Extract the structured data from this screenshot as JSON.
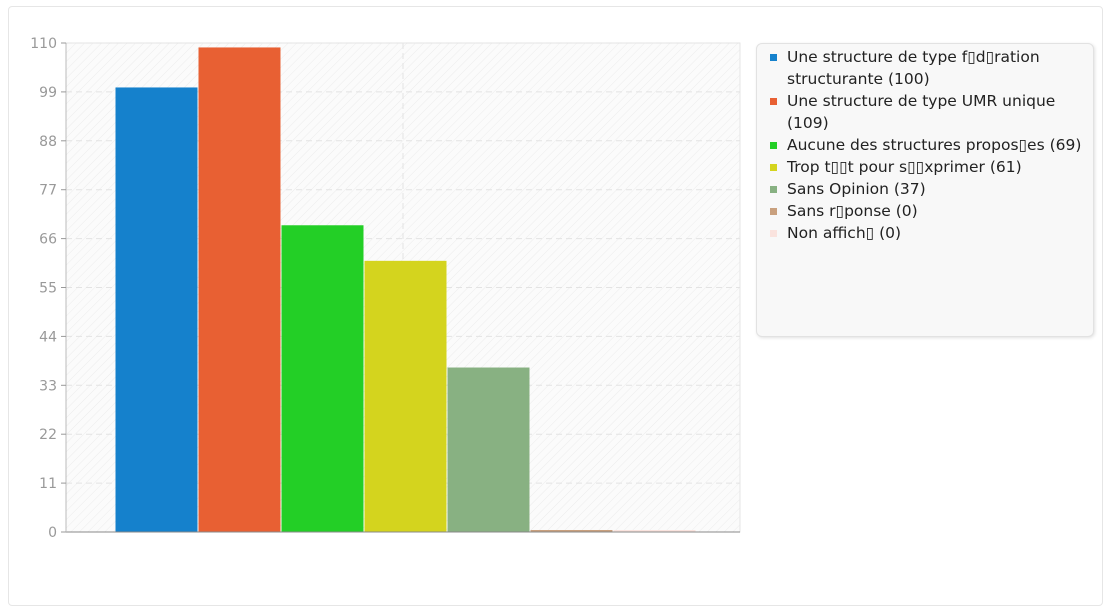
{
  "chart_data": {
    "type": "bar",
    "categories": [
      "Une structure de type f▯ d▯ ration structurante",
      "Une structure de type UMR unique",
      "Aucune des structures propos▯ es",
      "Trop t▯▯ t pour s▯▯ xprimer",
      "Sans Opinion",
      "Sans r▯ ponse",
      "Non affich▯"
    ],
    "values": [
      100,
      109,
      69,
      61,
      37,
      0,
      0
    ],
    "colors": [
      "#1581cc",
      "#e86033",
      "#23cf26",
      "#d4d41e",
      "#88b182",
      "#c9a07e",
      "#fae3de"
    ],
    "ylim": [
      0,
      110
    ],
    "yticks": [
      0,
      11,
      22,
      33,
      44,
      55,
      66,
      77,
      88,
      99,
      110
    ],
    "yticks_text": [
      "0",
      "11",
      "22",
      "33",
      "44",
      "55",
      "66",
      "77",
      "88",
      "99",
      "110"
    ],
    "grid": true,
    "legend_position": "right",
    "legend": [
      "Une structure de type f▯d▯ration structurante (100)",
      "Une structure de type UMR unique (109)",
      "Aucune des structures propos▯es (69)",
      "Trop t▯▯t pour s▯▯xprimer (61)",
      "Sans Opinion (37)",
      "Sans r▯ponse (0)",
      "Non affich▯ (0)"
    ]
  }
}
